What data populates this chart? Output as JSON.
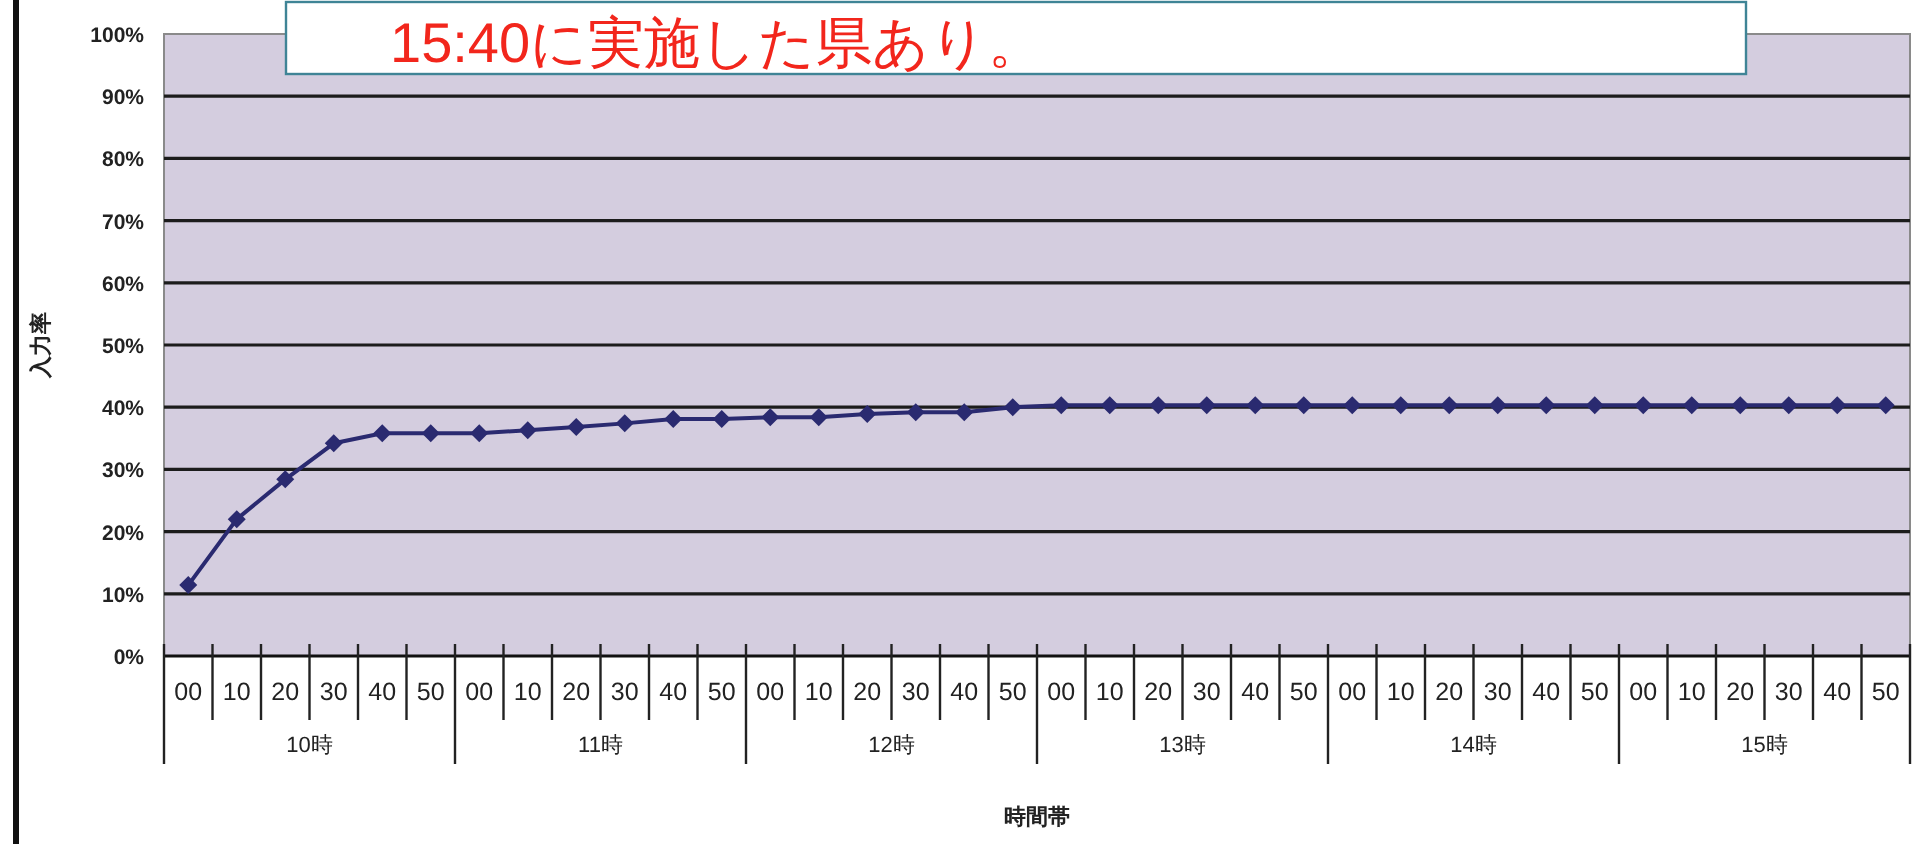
{
  "chart_data": {
    "type": "line",
    "xlabel": "時間帯",
    "ylabel": "入力率",
    "categories": [
      "00",
      "10",
      "20",
      "30",
      "40",
      "50",
      "00",
      "10",
      "20",
      "30",
      "40",
      "50",
      "00",
      "10",
      "20",
      "30",
      "40",
      "50",
      "00",
      "10",
      "20",
      "30",
      "40",
      "50",
      "00",
      "10",
      "20",
      "30",
      "40",
      "50",
      "00",
      "10",
      "20",
      "30",
      "40",
      "50"
    ],
    "series": [
      {
        "color": "#2a2a70",
        "values": [
          11.4,
          22,
          28.4,
          34.2,
          35.8,
          35.8,
          35.8,
          36.3,
          36.8,
          37.4,
          38.1,
          38.1,
          38.4,
          38.4,
          38.9,
          39.2,
          39.2,
          40,
          40.3,
          40.3,
          40.3,
          40.3,
          40.3,
          40.3,
          40.3,
          40.3,
          40.3,
          40.3,
          40.3,
          40.3,
          40.3,
          40.3,
          40.3,
          40.3,
          40.3,
          40.3
        ]
      }
    ],
    "ylim": [
      0,
      100
    ],
    "yticks": [
      {
        "value": 0,
        "label": "0%"
      },
      {
        "value": 10,
        "label": "10%"
      },
      {
        "value": 20,
        "label": "20%"
      },
      {
        "value": 30,
        "label": "30%"
      },
      {
        "value": 40,
        "label": "40%"
      },
      {
        "value": 50,
        "label": "50%"
      },
      {
        "value": 60,
        "label": "60%"
      },
      {
        "value": 70,
        "label": "70%"
      },
      {
        "value": 80,
        "label": "80%"
      },
      {
        "value": 90,
        "label": "90%"
      },
      {
        "value": 100,
        "label": "100%"
      }
    ],
    "grid": "y",
    "marker": "diamond",
    "line_style": "solid",
    "annotations": [
      "15:40に実施した県あり。",
      "10時",
      "11時",
      "12時",
      "13時",
      "14時",
      "15時"
    ]
  }
}
